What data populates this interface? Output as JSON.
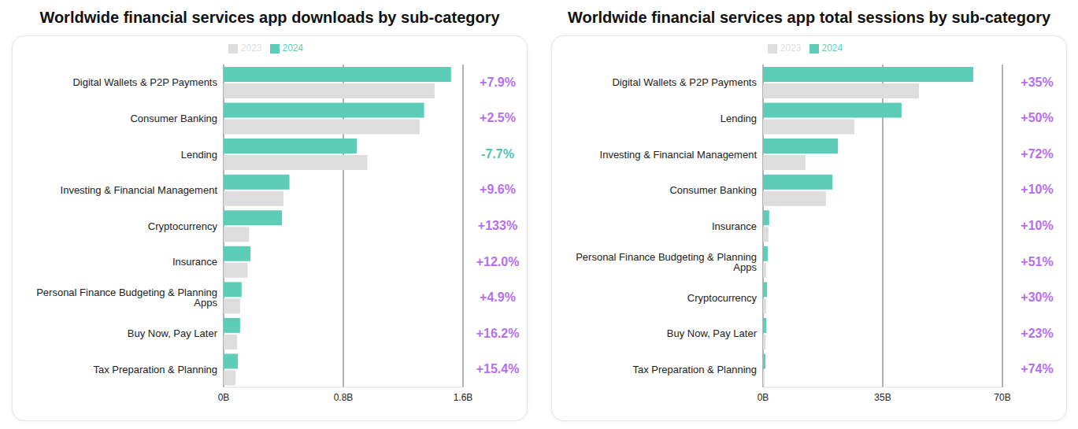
{
  "chart_data": [
    {
      "type": "bar",
      "title": "Worldwide financial services app downloads by sub-category",
      "orientation": "horizontal",
      "categories": [
        "Digital Wallets & P2P Payments",
        "Consumer Banking",
        "Lending",
        "Investing & Financial Management",
        "Cryptocurrency",
        "Insurance",
        "Personal Finance Budgeting & Planning Apps",
        "Buy Now, Pay Later",
        "Tax Preparation & Planning"
      ],
      "series": [
        {
          "name": "2024",
          "color": "#5ecdb8",
          "values": [
            1.52,
            1.34,
            0.89,
            0.44,
            0.39,
            0.18,
            0.12,
            0.11,
            0.095
          ]
        },
        {
          "name": "2023",
          "color": "#dddddd",
          "values": [
            1.41,
            1.31,
            0.96,
            0.4,
            0.17,
            0.16,
            0.11,
            0.09,
            0.08
          ]
        }
      ],
      "annotations": [
        "+7.9%",
        "+2.5%",
        "-7.7%",
        "+9.6%",
        "+133%",
        "+12.0%",
        "+4.9%",
        "+16.2%",
        "+15.4%"
      ],
      "xlim": [
        0,
        1.6
      ],
      "xticks": [
        {
          "value": 0,
          "label": "0B"
        },
        {
          "value": 0.8,
          "label": "0.8B"
        },
        {
          "value": 1.6,
          "label": "1.6B"
        }
      ],
      "grid": true,
      "legend": "top"
    },
    {
      "type": "bar",
      "title": "Worldwide financial services app total sessions by sub-category",
      "orientation": "horizontal",
      "categories": [
        "Digital Wallets & P2P Payments",
        "Lending",
        "Investing & Financial Management",
        "Consumer Banking",
        "Insurance",
        "Personal Finance Budgeting & Planning Apps",
        "Cryptocurrency",
        "Buy Now, Pay Later",
        "Tax Preparation & Planning"
      ],
      "series": [
        {
          "name": "2024",
          "color": "#5ecdb8",
          "values": [
            61.5,
            40.5,
            21.9,
            20.3,
            1.8,
            1.4,
            1.2,
            1.0,
            0.7
          ]
        },
        {
          "name": "2023",
          "color": "#dddddd",
          "values": [
            45.6,
            26.7,
            12.4,
            18.4,
            1.6,
            0.9,
            0.9,
            0.8,
            0.4
          ]
        }
      ],
      "annotations": [
        "+35%",
        "+50%",
        "+72%",
        "+10%",
        "+10%",
        "+51%",
        "+30%",
        "+23%",
        "+74%"
      ],
      "xlim": [
        0,
        70
      ],
      "xticks": [
        {
          "value": 0,
          "label": "0B"
        },
        {
          "value": 35,
          "label": "35B"
        },
        {
          "value": 70,
          "label": "70B"
        }
      ],
      "grid": true,
      "legend": "top"
    }
  ]
}
